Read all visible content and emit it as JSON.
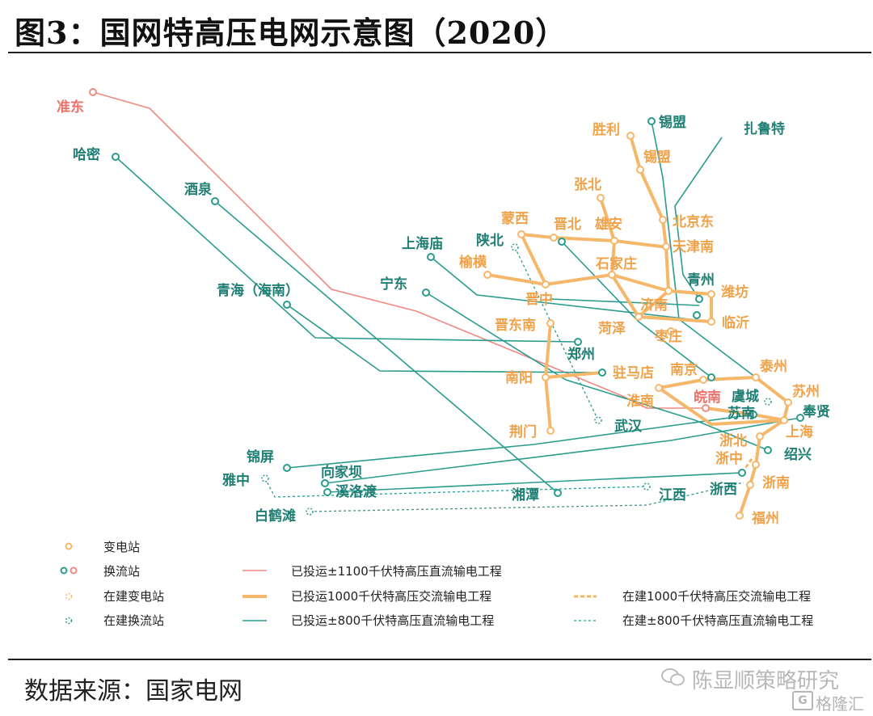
{
  "title": "图3：国网特高压电网示意图（2020）",
  "source": "数据来源：国家电网",
  "watermark": {
    "account": "陈显顺策略研究",
    "logo": "格隆汇"
  },
  "colors": {
    "uhv_dc_1100": "#f08a80",
    "uhv_ac_1000": "#f5b76a",
    "uhv_dc_800": "#2a9c8e",
    "uhv_dc_label": "#1f7f74",
    "ac_label": "#f0a24a",
    "dc_1100_label": "#ee7068"
  },
  "legend": {
    "substation": "变电站",
    "converter": "换流站",
    "substation_building": "在建变电站",
    "converter_building": "在建换流站",
    "line_1100": "已投运±1100千伏特高压直流输电工程",
    "line_ac": "已投运1000千伏特高压交流输电工程",
    "line_800": "已投运±800千伏特高压直流输电工程",
    "line_ac_building": "在建1000千伏特高压交流输电工程",
    "line_800_building": "在建±800千伏特高压直流输电工程"
  },
  "stations": {
    "zhundong": "准东",
    "hami": "哈密",
    "jiuquan": "酒泉",
    "qinghai": "青海（海南）",
    "shanghaimiao": "上海庙",
    "ningdong": "宁东",
    "shaanbei": "陕北",
    "yuheng": "榆横",
    "mengxi": "蒙西",
    "jinbei": "晋北",
    "zhangbei": "张北",
    "xiongan": "雄安",
    "shengli": "胜利",
    "ximeng_dc": "锡盟",
    "ximeng_ac": "锡盟",
    "zhalute": "扎鲁特",
    "beijingdong": "北京东",
    "tianjinnan": "天津南",
    "shijiazhuang": "石家庄",
    "jinzhong": "晋中",
    "qingzhou": "青州",
    "weifang": "潍坊",
    "jinan": "济南",
    "linyi": "临沂",
    "heze": "菏泽",
    "zaozhuang": "枣庄",
    "jindongnan": "晋东南",
    "zhengzhou": "郑州",
    "zhumadian": "驻马店",
    "nanyang": "南阳",
    "nanjing": "南京",
    "taizhou": "泰州",
    "suzhou": "苏州",
    "huainan": "淮南",
    "wannan": "皖南",
    "yucheng": "虞城",
    "sunan": "苏南",
    "fengxian": "奉贤",
    "shanghai": "上海",
    "jingmen": "荆门",
    "wuhan": "武汉",
    "zhebei": "浙北",
    "shaoxing": "绍兴",
    "zhezhong": "浙中",
    "zhenan": "浙南",
    "fuzhou": "福州",
    "zhexi": "浙西",
    "jiangxi": "江西",
    "xiangtan": "湘潭",
    "jinping": "锦屏",
    "xiangjiaba": "向家坝",
    "yazhong": "雅中",
    "xiluodu": "溪洛渡",
    "baihetan": "白鹤滩"
  }
}
